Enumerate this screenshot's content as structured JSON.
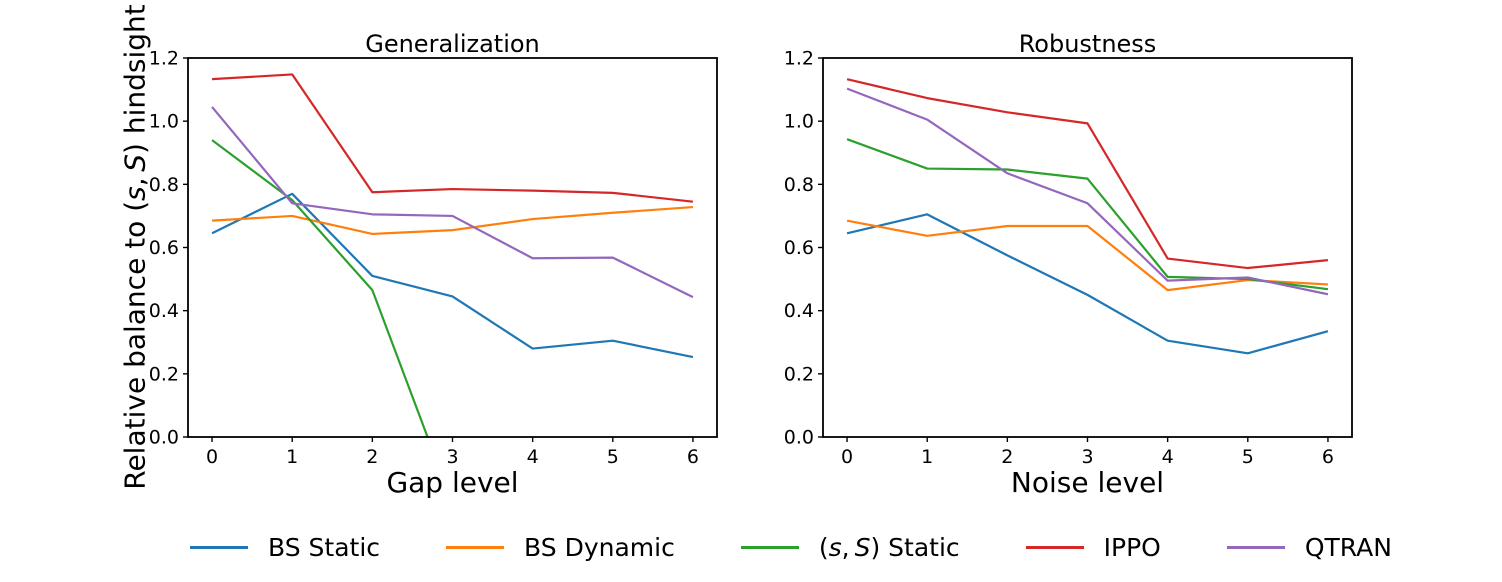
{
  "figure": {
    "ylabel": "Relative balance to (s, S) hindsight",
    "background": "#ffffff",
    "axis_color": "#000000"
  },
  "chart_data": [
    {
      "id": "generalization",
      "type": "line",
      "title": "Generalization",
      "xlabel": "Gap level",
      "x": [
        0,
        1,
        2,
        3,
        4,
        5,
        6
      ],
      "xticks": [
        "0",
        "1",
        "2",
        "3",
        "4",
        "5",
        "6"
      ],
      "yticks": [
        "0.0",
        "0.2",
        "0.4",
        "0.6",
        "0.8",
        "1.0",
        "1.2"
      ],
      "xlim": [
        -0.3,
        6.3
      ],
      "ylim": [
        0.0,
        1.2
      ],
      "grid": false,
      "legend_position": "figure-bottom",
      "series": [
        {
          "name": "BS Static",
          "color": "#1f77b4",
          "values": [
            0.645,
            0.77,
            0.51,
            0.445,
            0.28,
            0.305,
            0.253
          ]
        },
        {
          "name": "BS Dynamic",
          "color": "#ff7f0e",
          "values": [
            0.685,
            0.7,
            0.643,
            0.655,
            0.69,
            0.71,
            0.728
          ]
        },
        {
          "name": "(s, S) Static",
          "color": "#2ca02c",
          "values": [
            0.94,
            0.75,
            0.465,
            -0.21,
            null,
            null,
            null
          ]
        },
        {
          "name": "IPPO",
          "color": "#d62728",
          "values": [
            1.133,
            1.148,
            0.775,
            0.785,
            0.78,
            0.773,
            0.745
          ]
        },
        {
          "name": "QTRAN",
          "color": "#9467bd",
          "values": [
            1.045,
            0.74,
            0.705,
            0.7,
            0.566,
            0.568,
            0.443
          ]
        }
      ]
    },
    {
      "id": "robustness",
      "type": "line",
      "title": "Robustness",
      "xlabel": "Noise level",
      "x": [
        0,
        1,
        2,
        3,
        4,
        5,
        6
      ],
      "xticks": [
        "0",
        "1",
        "2",
        "3",
        "4",
        "5",
        "6"
      ],
      "yticks": [
        "0.0",
        "0.2",
        "0.4",
        "0.6",
        "0.8",
        "1.0",
        "1.2"
      ],
      "xlim": [
        -0.3,
        6.3
      ],
      "ylim": [
        0.0,
        1.2
      ],
      "grid": false,
      "legend_position": "figure-bottom",
      "series": [
        {
          "name": "BS Static",
          "color": "#1f77b4",
          "values": [
            0.645,
            0.705,
            0.575,
            0.45,
            0.305,
            0.265,
            0.335
          ]
        },
        {
          "name": "BS Dynamic",
          "color": "#ff7f0e",
          "values": [
            0.685,
            0.637,
            0.668,
            0.668,
            0.465,
            0.497,
            0.483
          ]
        },
        {
          "name": "(s, S) Static",
          "color": "#2ca02c",
          "values": [
            0.943,
            0.85,
            0.847,
            0.818,
            0.507,
            0.5,
            0.468
          ]
        },
        {
          "name": "IPPO",
          "color": "#d62728",
          "values": [
            1.133,
            1.073,
            1.028,
            0.993,
            0.565,
            0.535,
            0.56
          ]
        },
        {
          "name": "QTRAN",
          "color": "#9467bd",
          "values": [
            1.103,
            1.005,
            0.835,
            0.74,
            0.495,
            0.505,
            0.452
          ]
        }
      ]
    }
  ],
  "legend": {
    "items": [
      {
        "label": "BS Static",
        "color": "#1f77b4"
      },
      {
        "label": "BS Dynamic",
        "color": "#ff7f0e"
      },
      {
        "label": "(s, S) Static",
        "color": "#2ca02c"
      },
      {
        "label": "IPPO",
        "color": "#d62728"
      },
      {
        "label": "QTRAN",
        "color": "#9467bd"
      }
    ]
  }
}
